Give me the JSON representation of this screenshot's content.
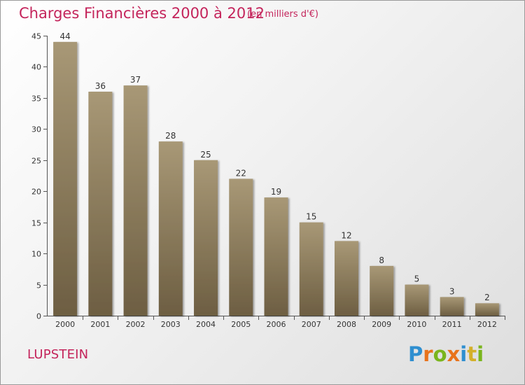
{
  "chart_data": {
    "type": "bar",
    "title": "Charges Financières 2000 à 2012",
    "subtitle": "(en milliers d'€)",
    "categories": [
      "2000",
      "2001",
      "2002",
      "2003",
      "2004",
      "2005",
      "2006",
      "2007",
      "2008",
      "2009",
      "2010",
      "2011",
      "2012"
    ],
    "values": [
      44,
      36,
      37,
      28,
      25,
      22,
      19,
      15,
      12,
      8,
      5,
      3,
      2
    ],
    "ylim": [
      0,
      45
    ],
    "yticks": [
      0,
      5,
      10,
      15,
      20,
      25,
      30,
      35,
      40,
      45
    ],
    "xlabel": "",
    "ylabel": "",
    "grid": false,
    "bar_color_top": "#a89876",
    "bar_color_bottom": "#6d5e42"
  },
  "commune": "LUPSTEIN",
  "logo": {
    "letters": [
      "P",
      "r",
      "o",
      "x",
      "i",
      "t",
      "i"
    ],
    "colors": [
      "#2f8fd0",
      "#e8731c",
      "#7ab51d",
      "#e8731c",
      "#2f8fd0",
      "#d4b02a",
      "#7ab51d"
    ]
  }
}
